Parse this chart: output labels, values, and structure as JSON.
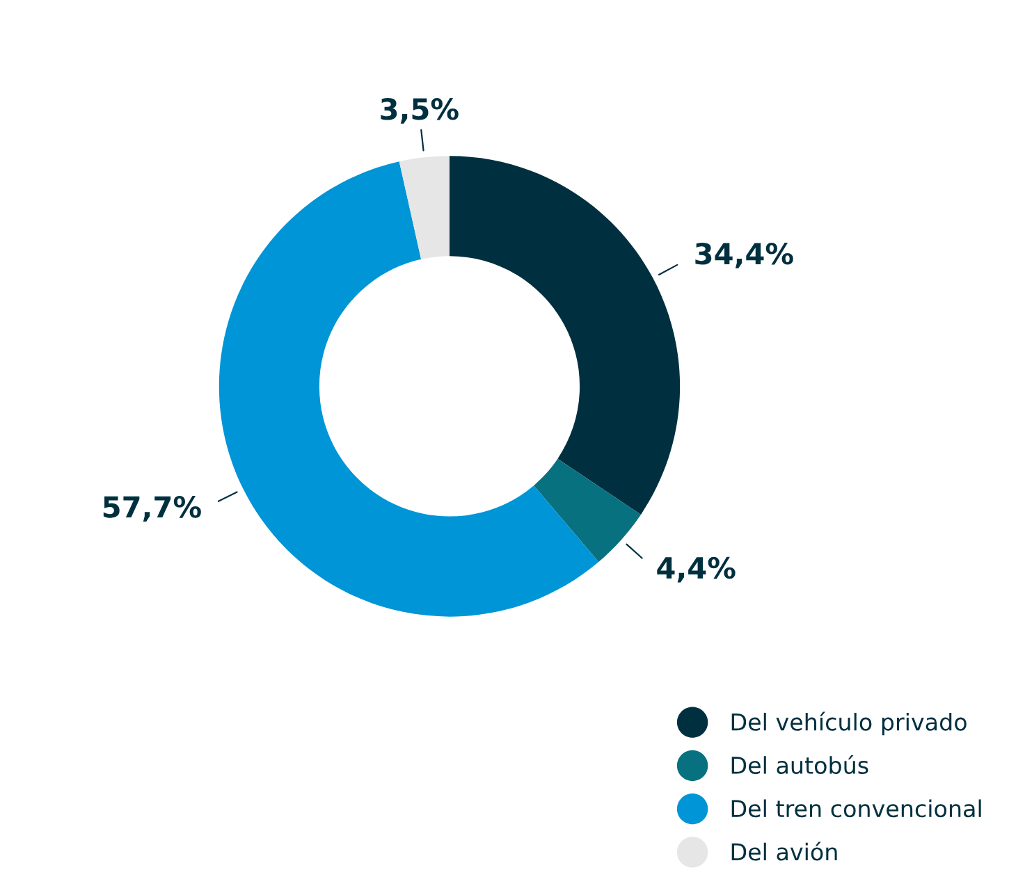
{
  "chart_data": {
    "type": "donut",
    "categories": [
      "Del vehículo privado",
      "Del autobús",
      "Del tren convencional",
      "Del avión"
    ],
    "values": [
      34.4,
      4.4,
      57.7,
      3.5
    ],
    "value_labels": [
      "34,4%",
      "4,4%",
      "57,7%",
      "3,5%"
    ],
    "colors": [
      "#00303f",
      "#08717f",
      "#0095d6",
      "#e6e6e6"
    ],
    "legend": "bottom right"
  }
}
